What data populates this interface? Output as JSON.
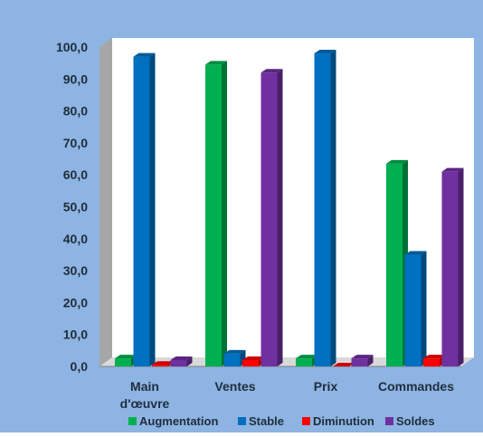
{
  "chart_data": {
    "type": "bar",
    "categories": [
      "Main\nd'œuvre",
      "Ventes",
      "Prix",
      "Commandes"
    ],
    "series": [
      {
        "name": "Augmentation",
        "color": "#00b050",
        "values": [
          2.5,
          94.5,
          2.5,
          63.5
        ]
      },
      {
        "name": "Stable",
        "color": "#0070c0",
        "values": [
          97.0,
          4.0,
          98.0,
          35.0
        ]
      },
      {
        "name": "Diminution",
        "color": "#ff0000",
        "values": [
          0.5,
          2.0,
          0.0,
          2.5
        ]
      },
      {
        "name": "Soldes",
        "color": "#7030a0",
        "values": [
          2.0,
          92.0,
          2.5,
          61.0
        ]
      }
    ],
    "yticks": [
      "0,0",
      "10,0",
      "20,0",
      "30,0",
      "40,0",
      "50,0",
      "60,0",
      "70,0",
      "80,0",
      "90,0",
      "100,0"
    ],
    "ylim": [
      0,
      100
    ],
    "grid": false,
    "legend": "bottom",
    "title": "",
    "xlabel": "",
    "ylabel": ""
  },
  "colors": {
    "chart_background": "#8db4e2",
    "plot_background": "#ffffff",
    "side_wall": "#a6a6a6",
    "floor": "#d9d9d9"
  }
}
